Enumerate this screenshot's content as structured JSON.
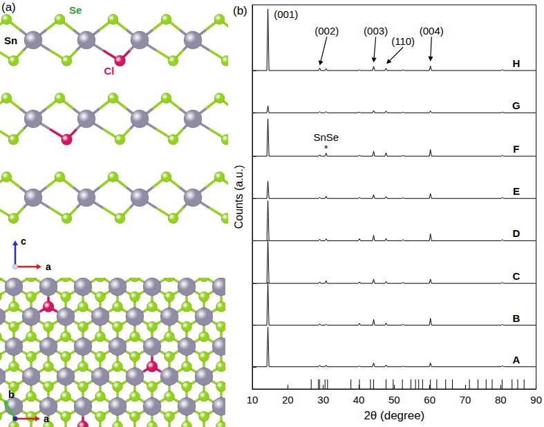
{
  "structure": {
    "label": "(a)",
    "atoms": [
      {
        "symbol": "Sn",
        "color": "#8f8ca3",
        "label_color": "#000000"
      },
      {
        "symbol": "Se",
        "color": "#94d31b",
        "label_color": "#2e9e2a"
      },
      {
        "symbol": "Cl",
        "color": "#d2155e",
        "label_color": "#d2155e"
      }
    ],
    "side_axes": {
      "up": "c",
      "right": "a"
    },
    "top_axes": {
      "up": "b",
      "right": "a"
    },
    "axis_colors": {
      "a": "#e31a1c",
      "b": "#33c125",
      "c": "#1f2fe0"
    }
  },
  "chart_data": {
    "type": "line",
    "title": "(b)",
    "x_label": "2θ (degree)",
    "y_label": "Counts (a.u.)",
    "x": [
      10,
      14.1,
      14.4,
      14.7,
      28.7,
      29.0,
      29.3,
      30.5,
      30.8,
      31.1,
      39.9,
      40.2,
      40.5,
      43.9,
      44.2,
      44.5,
      47.4,
      47.7,
      48.0,
      52.2,
      52.5,
      52.8,
      59.9,
      60.2,
      60.5,
      80.2,
      80.5,
      80.8,
      90
    ],
    "series": [
      {
        "name": "A",
        "color": "#000000",
        "values": [
          5.8,
          5.8,
          16.1,
          5.8,
          5.8,
          6.2,
          5.8,
          5.8,
          6.2,
          5.8,
          5.8,
          6.0,
          5.8,
          5.8,
          6.8,
          5.8,
          5.8,
          6.3,
          5.8,
          5.8,
          6.0,
          5.8,
          5.8,
          6.8,
          5.8,
          5.8,
          6.1,
          5.8,
          5.8
        ]
      },
      {
        "name": "B",
        "color": "#000000",
        "values": [
          16.6,
          16.6,
          27.8,
          16.6,
          16.6,
          17.0,
          16.6,
          16.6,
          16.9,
          16.6,
          16.6,
          17.1,
          16.6,
          16.6,
          18.1,
          16.6,
          16.6,
          17.2,
          16.6,
          16.6,
          16.9,
          16.6,
          16.6,
          18.4,
          16.6,
          16.6,
          16.9,
          16.6,
          16.6
        ]
      },
      {
        "name": "C",
        "color": "#000000",
        "values": [
          27.5,
          27.5,
          38.8,
          27.5,
          27.5,
          27.9,
          27.5,
          27.5,
          28.2,
          27.5,
          27.5,
          27.9,
          27.5,
          27.5,
          28.6,
          27.5,
          27.5,
          28.0,
          27.5,
          27.5,
          27.8,
          27.5,
          27.5,
          28.6,
          27.5,
          27.5,
          27.8,
          27.5,
          27.5
        ]
      },
      {
        "name": "D",
        "color": "#000000",
        "values": [
          38.6,
          38.6,
          49.0,
          38.6,
          38.6,
          39.0,
          38.6,
          38.6,
          39.1,
          38.6,
          38.6,
          39.1,
          38.6,
          38.6,
          40.0,
          38.6,
          38.6,
          39.2,
          38.6,
          38.6,
          38.9,
          38.6,
          38.6,
          40.4,
          38.6,
          38.6,
          38.9,
          38.6,
          38.6
        ]
      },
      {
        "name": "E",
        "color": "#000000",
        "values": [
          49.6,
          49.6,
          54.1,
          49.6,
          49.6,
          49.9,
          49.6,
          49.6,
          50.2,
          49.6,
          49.6,
          49.9,
          49.6,
          49.6,
          50.6,
          49.6,
          49.6,
          50.1,
          49.6,
          49.6,
          49.8,
          49.6,
          49.6,
          50.9,
          49.6,
          49.6,
          49.9,
          49.6,
          49.6
        ]
      },
      {
        "name": "F",
        "color": "#000000",
        "values": [
          60.6,
          60.6,
          70.3,
          60.6,
          60.6,
          61.0,
          60.6,
          60.6,
          61.4,
          60.6,
          60.6,
          60.9,
          60.6,
          60.6,
          61.9,
          60.6,
          60.6,
          61.5,
          60.6,
          60.6,
          60.9,
          60.6,
          60.6,
          62.3,
          60.6,
          60.6,
          60.9,
          60.6,
          60.6
        ]
      },
      {
        "name": "G",
        "color": "#000000",
        "values": [
          71.9,
          71.9,
          73.7,
          71.9,
          71.9,
          72.2,
          71.9,
          71.9,
          72.2,
          71.9,
          71.9,
          72.1,
          71.9,
          71.9,
          72.5,
          71.9,
          71.9,
          72.4,
          71.9,
          71.9,
          72.1,
          71.9,
          71.9,
          72.4,
          71.9,
          71.9,
          72.1,
          71.9,
          71.9
        ]
      },
      {
        "name": "H",
        "color": "#000000",
        "values": [
          82.9,
          82.9,
          98.9,
          82.9,
          82.9,
          83.5,
          82.9,
          82.9,
          83.4,
          82.9,
          82.9,
          83.1,
          82.9,
          82.9,
          84.0,
          82.9,
          82.9,
          83.5,
          82.9,
          82.9,
          83.1,
          82.9,
          82.9,
          84.1,
          82.9,
          82.9,
          83.2,
          82.9,
          82.9
        ]
      }
    ],
    "reference": {
      "x": [
        26.6,
        28.6,
        29.0,
        30.5,
        31.2,
        37.8,
        40.2,
        43.3,
        44.2,
        47.7,
        49.7,
        52.3,
        54.7,
        56.0,
        56.9,
        58.0,
        60.2,
        62.0,
        64.5,
        66.4,
        71.2,
        73.6,
        75.9,
        77.6,
        80.4,
        83.2,
        84.8,
        86.6
      ],
      "low": 0,
      "high": 2.5
    },
    "annotations": [
      {
        "text": "(001)",
        "x": 19.5,
        "y": 97.5
      },
      {
        "text": "(002)",
        "x": 31.0,
        "y": 93.3,
        "arrow_to": [
          29.0,
          84.2
        ]
      },
      {
        "text": "(003)",
        "x": 44.8,
        "y": 93.3,
        "arrow_to": [
          44.2,
          85.0
        ]
      },
      {
        "text": "(110)",
        "x": 52.5,
        "y": 90.6,
        "arrow_to": [
          47.8,
          84.6
        ]
      },
      {
        "text": "(004)",
        "x": 60.5,
        "y": 93.3,
        "arrow_to": [
          60.2,
          85.3
        ]
      },
      {
        "text": "SnSe",
        "x": 30.8,
        "y": 65.6
      },
      {
        "text": "*",
        "x": 30.8,
        "y": 62.6
      }
    ],
    "xlim": [
      10,
      90
    ],
    "xticks": [
      10,
      20,
      30,
      40,
      50,
      60,
      70,
      80,
      90
    ],
    "ylim": [
      0,
      100
    ],
    "yticks": [
      5.8,
      16.6,
      27.5,
      38.6,
      49.6,
      60.6,
      71.9,
      82.9
    ],
    "tick_labels": "x",
    "grid": false
  }
}
